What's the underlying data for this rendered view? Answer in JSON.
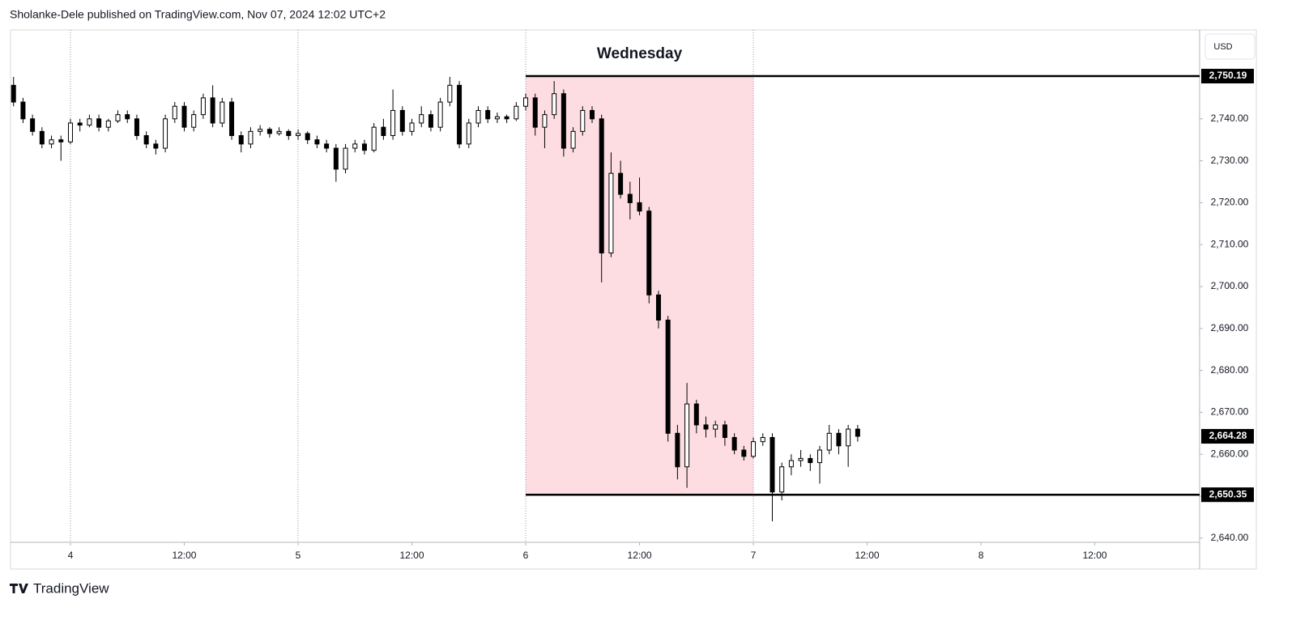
{
  "chart_data": {
    "type": "candlestick",
    "title": "Sholanke-Dele published on TradingView.com, Nov 07, 2024 12:02 UTC+2",
    "currency": "USD",
    "brand": "TradingView",
    "x": [
      "2024-11-03T18:00",
      "2024-11-03T19:00",
      "2024-11-03T20:00",
      "2024-11-03T21:00",
      "2024-11-03T22:00",
      "2024-11-03T23:00",
      "2024-11-04T00:00",
      "2024-11-04T01:00",
      "2024-11-04T02:00",
      "2024-11-04T03:00",
      "2024-11-04T04:00",
      "2024-11-04T05:00",
      "2024-11-04T06:00",
      "2024-11-04T07:00",
      "2024-11-04T08:00",
      "2024-11-04T09:00",
      "2024-11-04T10:00",
      "2024-11-04T11:00",
      "2024-11-04T12:00",
      "2024-11-04T13:00",
      "2024-11-04T14:00",
      "2024-11-04T15:00",
      "2024-11-04T16:00",
      "2024-11-04T17:00",
      "2024-11-04T18:00",
      "2024-11-04T19:00",
      "2024-11-04T20:00",
      "2024-11-04T21:00",
      "2024-11-04T22:00",
      "2024-11-04T23:00",
      "2024-11-05T00:00",
      "2024-11-05T01:00",
      "2024-11-05T02:00",
      "2024-11-05T03:00",
      "2024-11-05T04:00",
      "2024-11-05T05:00",
      "2024-11-05T06:00",
      "2024-11-05T07:00",
      "2024-11-05T08:00",
      "2024-11-05T09:00",
      "2024-11-05T10:00",
      "2024-11-05T11:00",
      "2024-11-05T12:00",
      "2024-11-05T13:00",
      "2024-11-05T14:00",
      "2024-11-05T15:00",
      "2024-11-05T16:00",
      "2024-11-05T17:00",
      "2024-11-05T18:00",
      "2024-11-05T19:00",
      "2024-11-05T20:00",
      "2024-11-05T21:00",
      "2024-11-05T22:00",
      "2024-11-05T23:00",
      "2024-11-06T00:00",
      "2024-11-06T01:00",
      "2024-11-06T02:00",
      "2024-11-06T03:00",
      "2024-11-06T04:00",
      "2024-11-06T05:00",
      "2024-11-06T06:00",
      "2024-11-06T07:00",
      "2024-11-06T08:00",
      "2024-11-06T09:00",
      "2024-11-06T10:00",
      "2024-11-06T11:00",
      "2024-11-06T12:00",
      "2024-11-06T13:00",
      "2024-11-06T14:00",
      "2024-11-06T15:00",
      "2024-11-06T16:00",
      "2024-11-06T17:00",
      "2024-11-06T18:00",
      "2024-11-06T19:00",
      "2024-11-06T20:00",
      "2024-11-06T21:00",
      "2024-11-06T22:00",
      "2024-11-06T23:00",
      "2024-11-07T00:00",
      "2024-11-07T01:00",
      "2024-11-07T02:00",
      "2024-11-07T03:00",
      "2024-11-07T04:00",
      "2024-11-07T05:00",
      "2024-11-07T06:00",
      "2024-11-07T07:00",
      "2024-11-07T08:00",
      "2024-11-07T09:00",
      "2024-11-07T10:00",
      "2024-11-07T11:00"
    ],
    "open": [
      2748,
      2744,
      2740,
      2737,
      2734,
      2735,
      2734.5,
      2739,
      2738.5,
      2740,
      2738,
      2739.5,
      2741,
      2740,
      2736,
      2734,
      2733,
      2740,
      2743,
      2738,
      2741,
      2745,
      2739,
      2744,
      2736,
      2734,
      2737,
      2737.5,
      2736.5,
      2737,
      2736,
      2736.5,
      2735,
      2734,
      2733,
      2728,
      2733,
      2734,
      2732.5,
      2738,
      2736,
      2742,
      2737,
      2739,
      2741,
      2738,
      2744,
      2748,
      2734,
      2739,
      2742,
      2740,
      2740.5,
      2740,
      2743,
      2745,
      2738,
      2741,
      2746,
      2733,
      2737,
      2742,
      2740,
      2708,
      2727,
      2722,
      2720,
      2718,
      2698,
      2692,
      2665,
      2657,
      2672,
      2667,
      2666,
      2667,
      2664,
      2661,
      2659.5,
      2663,
      2664,
      2651,
      2657,
      2658.5,
      2659,
      2658,
      2661,
      2665,
      2662,
      2666
    ],
    "high": [
      2750,
      2745,
      2741,
      2738,
      2736,
      2736,
      2740,
      2740,
      2741,
      2741,
      2740,
      2742,
      2742,
      2741,
      2737,
      2735,
      2741,
      2744,
      2744,
      2742,
      2746,
      2748,
      2745,
      2745,
      2737,
      2738,
      2738.5,
      2738,
      2738,
      2737.5,
      2737.5,
      2737,
      2736,
      2735,
      2734,
      2734,
      2735,
      2735,
      2739,
      2740,
      2747,
      2743,
      2740,
      2743,
      2742,
      2745,
      2750,
      2749,
      2740,
      2743,
      2743,
      2741.5,
      2741,
      2744,
      2746,
      2746,
      2742,
      2749,
      2747,
      2738,
      2743,
      2743,
      2741,
      2732,
      2730,
      2725,
      2726,
      2719,
      2699,
      2693,
      2667,
      2677,
      2673,
      2669,
      2668,
      2668,
      2665,
      2662,
      2664,
      2665,
      2665,
      2658,
      2660,
      2661,
      2660,
      2662,
      2667,
      2666,
      2667,
      2667
    ],
    "low": [
      2743,
      2739,
      2736,
      2733,
      2733,
      2730,
      2734,
      2737,
      2738,
      2737,
      2737,
      2739,
      2739,
      2735,
      2733,
      2731.5,
      2732,
      2739,
      2737,
      2737,
      2740,
      2738,
      2738,
      2735,
      2732,
      2733,
      2736,
      2735.5,
      2736,
      2735,
      2735,
      2734,
      2733,
      2732,
      2725,
      2727,
      2732,
      2731.5,
      2732,
      2735,
      2735,
      2736,
      2736,
      2738,
      2737,
      2737,
      2743,
      2733,
      2733,
      2738,
      2739,
      2739,
      2739,
      2739.5,
      2742,
      2736,
      2733,
      2740,
      2731,
      2732,
      2736,
      2739,
      2701,
      2707,
      2721,
      2716,
      2717,
      2696,
      2690,
      2663,
      2654,
      2652,
      2665,
      2664,
      2664,
      2662,
      2660,
      2658.5,
      2659,
      2662,
      2644,
      2649,
      2655,
      2657,
      2656,
      2653,
      2660,
      2660,
      2657,
      2663
    ],
    "close": [
      2744,
      2740,
      2737,
      2734,
      2735,
      2734.5,
      2739,
      2738.5,
      2740,
      2738,
      2739.5,
      2741,
      2740,
      2736,
      2734,
      2733,
      2740,
      2743,
      2738,
      2741,
      2745,
      2739,
      2744,
      2736,
      2734,
      2737,
      2737.5,
      2736.5,
      2737,
      2736,
      2736.5,
      2735,
      2734,
      2733,
      2728,
      2733,
      2734,
      2732.5,
      2738,
      2736,
      2742,
      2737,
      2739,
      2741,
      2738,
      2744,
      2748,
      2734,
      2739,
      2742,
      2740,
      2740.5,
      2740,
      2743,
      2745,
      2738,
      2741,
      2746,
      2733,
      2737,
      2742,
      2740,
      2708,
      2727,
      2722,
      2720,
      2718,
      2698,
      2692,
      2665,
      2657,
      2672,
      2667,
      2666,
      2667,
      2664,
      2661,
      2659.5,
      2663,
      2664,
      2651,
      2657,
      2658.5,
      2659,
      2658,
      2661,
      2665,
      2662,
      2666,
      2664.28
    ],
    "up_color": "#ffffff",
    "down_color": "#000000",
    "border_color": "#000000",
    "xlim": [
      "2024-11-03T17:41",
      "2024-11-08T23:03"
    ],
    "xticks": [
      {
        "value": "2024-11-04T00:00",
        "label": "4"
      },
      {
        "value": "2024-11-04T12:00",
        "label": "12:00"
      },
      {
        "value": "2024-11-05T00:00",
        "label": "5"
      },
      {
        "value": "2024-11-05T12:00",
        "label": "12:00"
      },
      {
        "value": "2024-11-06T00:00",
        "label": "6"
      },
      {
        "value": "2024-11-06T12:00",
        "label": "12:00"
      },
      {
        "value": "2024-11-07T00:00",
        "label": "7"
      },
      {
        "value": "2024-11-07T12:00",
        "label": "12:00"
      },
      {
        "value": "2024-11-08T00:00",
        "label": "8"
      },
      {
        "value": "2024-11-08T12:00",
        "label": "12:00"
      }
    ],
    "ylim": [
      2639,
      2761.2
    ],
    "yticks": [
      {
        "value": 2640,
        "label": "2,640.00"
      },
      {
        "value": 2650,
        "label": "2,650.00"
      },
      {
        "value": 2660,
        "label": "2,660.00"
      },
      {
        "value": 2670,
        "label": "2,670.00"
      },
      {
        "value": 2680,
        "label": "2,680.00"
      },
      {
        "value": 2690,
        "label": "2,690.00"
      },
      {
        "value": 2700,
        "label": "2,700.00"
      },
      {
        "value": 2710,
        "label": "2,710.00"
      },
      {
        "value": 2720,
        "label": "2,720.00"
      },
      {
        "value": 2730,
        "label": "2,730.00"
      },
      {
        "value": 2740,
        "label": "2,740.00"
      }
    ],
    "zone": {
      "label": "Wednesday",
      "x": [
        "2024-11-06T00:00",
        "2024-11-07T00:00"
      ],
      "y": [
        2650.35,
        2750.19
      ],
      "color": "#fddde2"
    },
    "hlines": [
      {
        "value": 2750.19,
        "label": "2,750.19",
        "from": "2024-11-06T00:00"
      },
      {
        "value": 2650.35,
        "label": "2,650.35",
        "from": "2024-11-06T00:00"
      }
    ],
    "last_price": {
      "value": 2664.28,
      "label": "2,664.28"
    }
  }
}
